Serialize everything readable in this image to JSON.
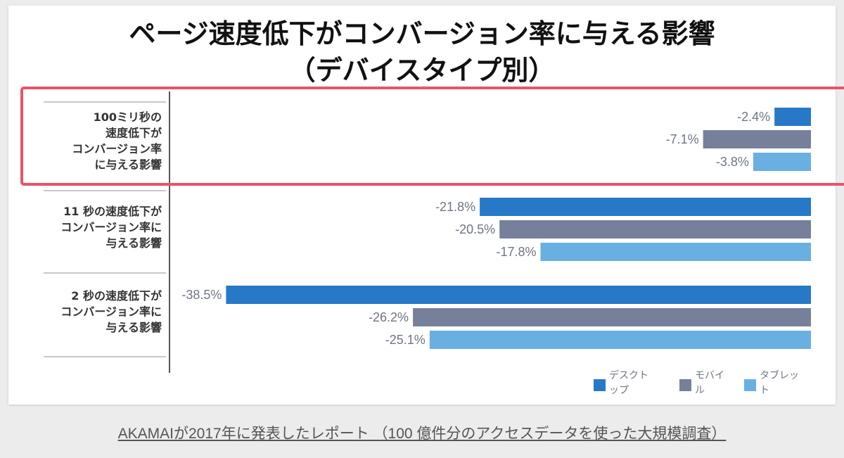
{
  "chart_data": {
    "type": "bar",
    "orientation": "horizontal",
    "title_lines": [
      "ページ速度低下がコンバージョン率に与える影響",
      "（デバイスタイプ別）"
    ],
    "categories": [
      [
        "100ミリ秒の",
        "速度低下が",
        "コンバージョン率",
        "に与える影響"
      ],
      [
        "11 秒の速度低下が",
        "コンバージョン率に",
        "与える影響"
      ],
      [
        "2 秒の速度低下が",
        "コンバージョン率に",
        "与える影響"
      ]
    ],
    "series": [
      {
        "name": "デスクトップ",
        "values": [
          -2.4,
          -21.8,
          -38.5
        ],
        "labels": [
          "-2.4%",
          "-21.8%",
          "-38.5%"
        ],
        "color": "#2878c8"
      },
      {
        "name": "モバイル",
        "values": [
          -7.1,
          -20.5,
          -26.2
        ],
        "labels": [
          "-7.1%",
          "-20.5%",
          "-26.2%"
        ],
        "color": "#77809a"
      },
      {
        "name": "タブレット",
        "values": [
          -3.8,
          -17.8,
          -25.1
        ],
        "labels": [
          "-3.8%",
          "-17.8%",
          "-25.1%"
        ],
        "color": "#6aafe2"
      }
    ],
    "legend_labels": [
      [
        "デスクト",
        "ップ"
      ],
      [
        "モバイ",
        "ル"
      ],
      [
        "タブレッ",
        "ト"
      ]
    ],
    "xlim": [
      -40,
      0
    ],
    "legend": "bottom-right",
    "grid": false,
    "highlight_color": "#e8546a",
    "highlighted_category_index": 0
  },
  "footer": {
    "text": "AKAMAIが2017年に発表したレポート （100 億件分のアクセスデータを使った大規模調査）"
  }
}
